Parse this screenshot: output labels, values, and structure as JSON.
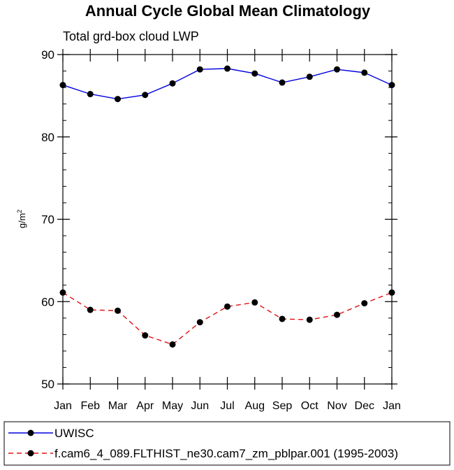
{
  "chart_data": {
    "type": "line",
    "title": "Annual Cycle Global Mean Climatology",
    "subtitle": "Total grd-box cloud LWP",
    "ylabel": "g/m",
    "ylabel_sup": "2",
    "ylim": [
      50,
      90
    ],
    "yticks": [
      50,
      60,
      70,
      80,
      90
    ],
    "yticks_minor_step": 2,
    "categories": [
      "Jan",
      "Feb",
      "Mar",
      "Apr",
      "May",
      "Jun",
      "Jul",
      "Aug",
      "Sep",
      "Oct",
      "Nov",
      "Dec",
      "Jan"
    ],
    "series": [
      {
        "name": "UWISC",
        "color": "#0000dd",
        "dash": "solid",
        "values": [
          86.3,
          85.2,
          84.6,
          85.1,
          86.5,
          88.2,
          88.3,
          87.7,
          86.6,
          87.3,
          88.2,
          87.8,
          86.3
        ]
      },
      {
        "name": "f.cam6_4_089.FLTHIST_ne30.cam7_zm_pblpar.001 (1995-2003)",
        "color": "#e01010",
        "dash": "dashed",
        "values": [
          61.1,
          59.0,
          58.9,
          55.9,
          54.8,
          57.5,
          59.4,
          59.9,
          57.9,
          57.8,
          58.4,
          59.8,
          61.1
        ]
      }
    ],
    "legend_position": "bottom"
  }
}
